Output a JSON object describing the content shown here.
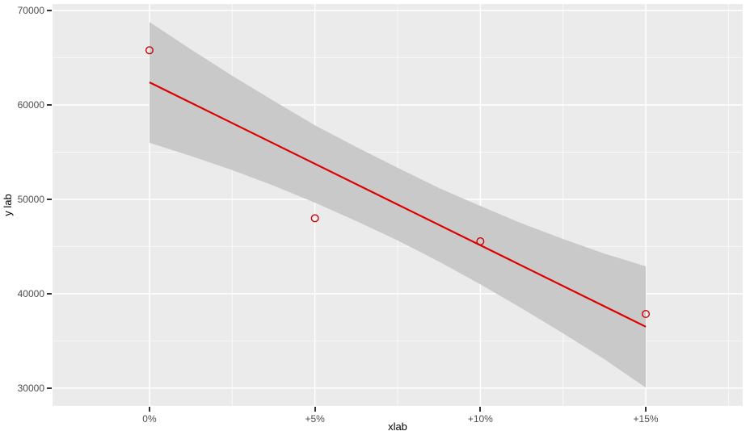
{
  "chart_data": {
    "type": "scatter",
    "title": "",
    "xlabel": "xlab",
    "ylabel": "y lab",
    "panel_bg": "#ebebeb",
    "grid_major_color": "#ffffff",
    "grid_minor_color": "#ffffff",
    "tick_mark_color": "#333333",
    "tick_label_color": "#4d4d4d",
    "x_axis": {
      "lim": [
        -2.93,
        17.93
      ],
      "ticks": [
        0,
        5,
        10,
        15
      ],
      "tick_labels": [
        "0%",
        "+5%",
        "+10%",
        "+15%"
      ],
      "minor_ticks": [
        2.5,
        7.5,
        12.5,
        17.5
      ]
    },
    "y_axis": {
      "lim": [
        28100,
        70700
      ],
      "ticks": [
        30000,
        40000,
        50000,
        60000,
        70000
      ],
      "tick_labels": [
        "30000",
        "40000",
        "50000",
        "60000",
        "70000"
      ],
      "minor_ticks": [
        35000,
        45000,
        55000,
        65000
      ]
    },
    "series": [
      {
        "name": "confidence-band",
        "kind": "area",
        "fill": "#c9c9c9",
        "x": [
          0,
          1.25,
          2.5,
          3.75,
          5,
          6.25,
          7.5,
          8.75,
          10,
          11.25,
          12.5,
          13.75,
          15
        ],
        "upper": [
          68800,
          65900,
          63100,
          60450,
          57850,
          55550,
          53350,
          51200,
          49300,
          47450,
          45800,
          44250,
          42900
        ],
        "lower": [
          56000,
          54600,
          53100,
          51450,
          49650,
          47700,
          45650,
          43400,
          41000,
          38450,
          35800,
          33050,
          30050
        ]
      },
      {
        "name": "regression-line",
        "kind": "line",
        "stroke": "#dd0000",
        "stroke_width": 2.2,
        "x": [
          0,
          15
        ],
        "y": [
          62400,
          36500
        ]
      },
      {
        "name": "observations",
        "kind": "points",
        "marker": "open-circle",
        "stroke": "#cc0000",
        "radius": 4.3,
        "x": [
          0,
          5,
          10,
          15
        ],
        "y": [
          65800,
          48000,
          45550,
          37850
        ]
      }
    ]
  }
}
